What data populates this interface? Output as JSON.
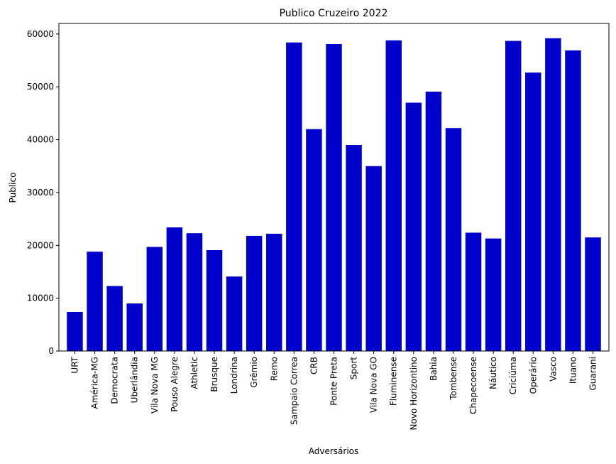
{
  "chart_data": {
    "type": "bar",
    "title": "Publico Cruzeiro 2022",
    "xlabel": "Adversários",
    "ylabel": "Publico",
    "ylim": [
      0,
      62000
    ],
    "yticks": [
      0,
      10000,
      20000,
      30000,
      40000,
      50000,
      60000
    ],
    "bar_color": "#0000cd",
    "grid": false,
    "categories": [
      "URT",
      "América-MG",
      "Democrata",
      "Uberlândia",
      "Vila Nova MG",
      "Pouso Alegre",
      "Athletic",
      "Brusque",
      "Londrina",
      "Grêmio",
      "Remo",
      "Sampaio Correa",
      "CRB",
      "Ponte Preta",
      "Sport",
      "Vila Nova GO",
      "Fluminense",
      "Novo Horizontino",
      "Bahia",
      "Tombense",
      "Chapecoense",
      "Náutico",
      "Criciúma",
      "Operário",
      "Vasco",
      "Ituano",
      "Guarani"
    ],
    "values": [
      7400,
      18800,
      12300,
      9000,
      19700,
      23400,
      22300,
      19100,
      14100,
      21800,
      22200,
      58400,
      42000,
      58100,
      39000,
      35000,
      58800,
      47000,
      49100,
      42200,
      22400,
      21300,
      58700,
      52700,
      59200,
      56900,
      21500
    ]
  }
}
